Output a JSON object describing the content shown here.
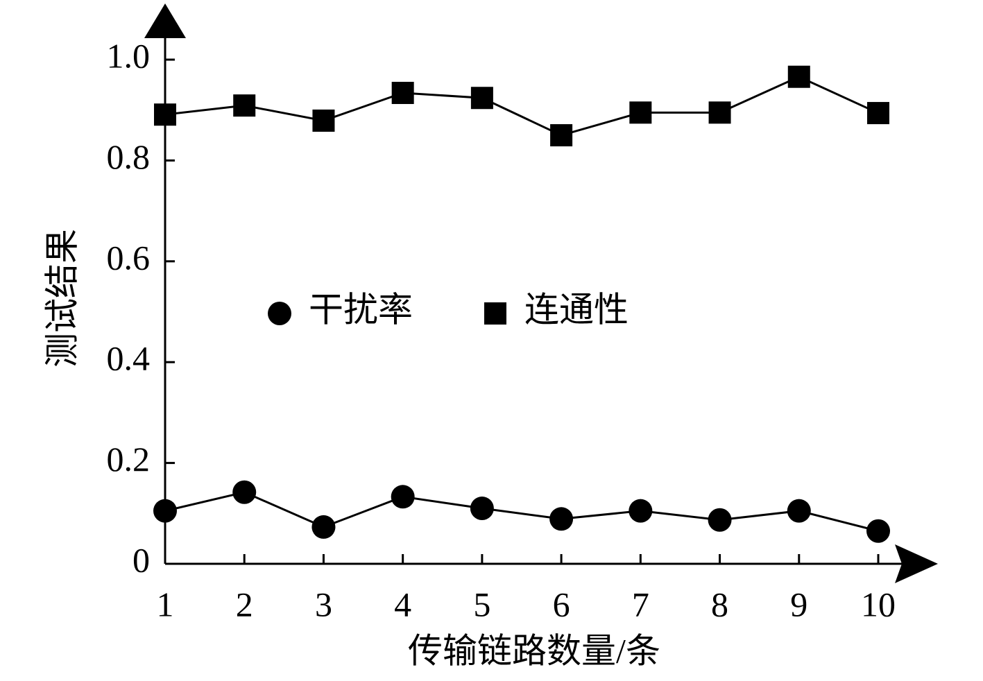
{
  "chart_data": {
    "type": "line",
    "x_label": "传输链路数量/条",
    "y_label": "测试结果",
    "x": [
      1,
      2,
      3,
      4,
      5,
      6,
      7,
      8,
      9,
      10
    ],
    "xlim": [
      1,
      10
    ],
    "xticks": [
      1,
      2,
      3,
      4,
      5,
      6,
      7,
      8,
      9,
      10
    ],
    "ylim": [
      0,
      1
    ],
    "yticks": [
      0,
      0.2,
      0.4,
      0.6,
      0.8,
      {
        "value": 1,
        "label": "1.0"
      }
    ],
    "series": [
      {
        "name": "干扰率",
        "color": "#000000",
        "marker": "circle",
        "values": [
          0.105,
          0.142,
          0.073,
          0.133,
          0.11,
          0.089,
          0.105,
          0.087,
          0.105,
          0.065
        ]
      },
      {
        "name": "连通性",
        "color": "#000000",
        "marker": "square",
        "values": [
          0.891,
          0.909,
          0.879,
          0.934,
          0.924,
          0.85,
          0.895,
          0.895,
          0.966,
          0.894
        ]
      }
    ]
  }
}
